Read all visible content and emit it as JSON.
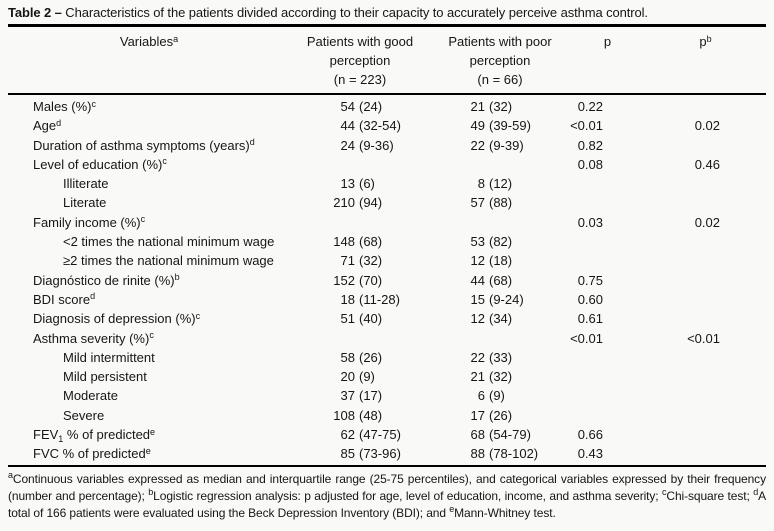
{
  "title": {
    "label": "Table 2",
    "dash": " – ",
    "text": "Characteristics of the patients divided according to their capacity to accurately perceive asthma control."
  },
  "header": {
    "variables": "Variables",
    "variables_sup": "a",
    "good": {
      "line1": "Patients with good",
      "line2": "perception",
      "line3": "(n = 223)"
    },
    "poor": {
      "line1": "Patients with poor",
      "line2": "perception",
      "line3": "(n = 66)"
    },
    "p": "p",
    "pb": "p",
    "pb_sup": "b"
  },
  "table": {
    "rows": [
      {
        "indent": false,
        "label": "Males (%)",
        "sup": "c",
        "good_num": "54",
        "good_paren": "(24)",
        "poor_num": "21",
        "poor_paren": "(32)",
        "p": "0.22",
        "pb": ""
      },
      {
        "indent": false,
        "label": "Age",
        "sup": "d",
        "good_num": "44",
        "good_paren": "(32-54)",
        "poor_num": "49",
        "poor_paren": "(39-59)",
        "p": "<0.01",
        "pb": "0.02"
      },
      {
        "indent": false,
        "label": "Duration of asthma symptoms (years)",
        "sup": "d",
        "good_num": "24",
        "good_paren": "(9-36)",
        "poor_num": "22",
        "poor_paren": "(9-39)",
        "p": "0.82",
        "pb": ""
      },
      {
        "indent": false,
        "label": "Level of education (%)",
        "sup": "c",
        "good_num": "",
        "good_paren": "",
        "poor_num": "",
        "poor_paren": "",
        "p": "0.08",
        "pb": "0.46"
      },
      {
        "indent": true,
        "label": "Illiterate",
        "sup": "",
        "good_num": "13",
        "good_paren": "(6)",
        "poor_num": "8",
        "poor_paren": "(12)",
        "p": "",
        "pb": ""
      },
      {
        "indent": true,
        "label": "Literate",
        "sup": "",
        "good_num": "210",
        "good_paren": "(94)",
        "poor_num": "57",
        "poor_paren": "(88)",
        "p": "",
        "pb": ""
      },
      {
        "indent": false,
        "label": "Family income (%)",
        "sup": "c",
        "good_num": "",
        "good_paren": "",
        "poor_num": "",
        "poor_paren": "",
        "p": "0.03",
        "pb": "0.02"
      },
      {
        "indent": true,
        "label": "<2 times the national minimum wage",
        "sup": "",
        "good_num": "148",
        "good_paren": "(68)",
        "poor_num": "53",
        "poor_paren": "(82)",
        "p": "",
        "pb": ""
      },
      {
        "indent": true,
        "label": "≥2 times the national minimum wage",
        "sup": "",
        "good_num": "71",
        "good_paren": "(32)",
        "poor_num": "12",
        "poor_paren": "(18)",
        "p": "",
        "pb": ""
      },
      {
        "indent": false,
        "label": "Diagnóstico de rinite (%)",
        "sup": "b",
        "good_num": "152",
        "good_paren": "(70)",
        "poor_num": "44",
        "poor_paren": "(68)",
        "p": "0.75",
        "pb": ""
      },
      {
        "indent": false,
        "label": "BDI score",
        "sup": "d",
        "good_num": "18",
        "good_paren": "(11-28)",
        "poor_num": "15",
        "poor_paren": "(9-24)",
        "p": "0.60",
        "pb": ""
      },
      {
        "indent": false,
        "label": "Diagnosis of depression (%)",
        "sup": "c",
        "good_num": "51",
        "good_paren": "(40)",
        "poor_num": "12",
        "poor_paren": "(34)",
        "p": "0.61",
        "pb": ""
      },
      {
        "indent": false,
        "label": "Asthma severity (%)",
        "sup": "c",
        "good_num": "",
        "good_paren": "",
        "poor_num": "",
        "poor_paren": "",
        "p": "<0.01",
        "pb": "<0.01"
      },
      {
        "indent": true,
        "label": "Mild intermittent",
        "sup": "",
        "good_num": "58",
        "good_paren": "(26)",
        "poor_num": "22",
        "poor_paren": "(33)",
        "p": "",
        "pb": ""
      },
      {
        "indent": true,
        "label": "Mild persistent",
        "sup": "",
        "good_num": "20",
        "good_paren": "(9)",
        "poor_num": "21",
        "poor_paren": "(32)",
        "p": "",
        "pb": ""
      },
      {
        "indent": true,
        "label": "Moderate",
        "sup": "",
        "good_num": "37",
        "good_paren": "(17)",
        "poor_num": "6",
        "poor_paren": "(9)",
        "p": "",
        "pb": ""
      },
      {
        "indent": true,
        "label": "Severe",
        "sup": "",
        "good_num": "108",
        "good_paren": "(48)",
        "poor_num": "17",
        "poor_paren": "(26)",
        "p": "",
        "pb": ""
      },
      {
        "indent": false,
        "label": "FEV",
        "label_sub": "1",
        "label2": " % of predicted",
        "sup": "e",
        "good_num": "62",
        "good_paren": "(47-75)",
        "poor_num": "68",
        "poor_paren": "(54-79)",
        "p": "0.66",
        "pb": ""
      },
      {
        "indent": false,
        "label": "FVC % of predicted",
        "sup": "e",
        "good_num": "85",
        "good_paren": "(73-96)",
        "poor_num": "88",
        "poor_paren": "(78-102)",
        "p": "0.43",
        "pb": ""
      }
    ]
  },
  "footnotes": [
    {
      "sup": "a",
      "text": "Continuous variables expressed as median and interquartile range (25-75 percentiles), and categorical variables expressed by their frequency (number and percentage); "
    },
    {
      "sup": "b",
      "text": "Logistic regression analysis: p adjusted for age, level of education, income, and asthma severity; "
    },
    {
      "sup": "c",
      "text": "Chi-square test; "
    },
    {
      "sup": "d",
      "text": "A total of 166 patients were evaluated using the Beck Depression Inventory (BDI); and "
    },
    {
      "sup": "e",
      "text": "Mann-Whitney test."
    }
  ],
  "colors": {
    "text": "#161616",
    "rule": "#000000",
    "background": "#f9f9f7"
  }
}
